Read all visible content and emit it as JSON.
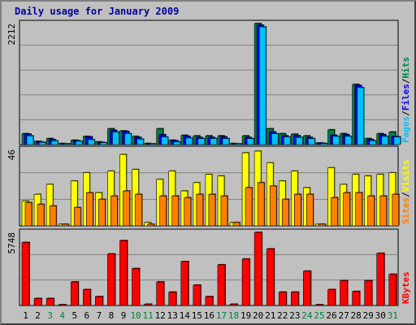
{
  "title": "Daily usage for January 2009",
  "colors": {
    "background": "#c0c0c0",
    "plot_background": "#c0c0c0",
    "hits": "#008040",
    "files": "#0000ff",
    "pages": "#00c0ff",
    "visits": "#ffff00",
    "sites": "#ff8000",
    "kbytes": "#ff0000",
    "weekend_day": "#008040",
    "weekday": "#000000",
    "title": "#0000a0"
  },
  "chart_data": [
    {
      "type": "bar",
      "name": "hits-files-pages",
      "ymax_label": "2212",
      "ylim": [
        0,
        2212
      ],
      "legend": [
        "Pages",
        "/",
        "Files",
        "/",
        "Hits"
      ],
      "categories": [
        "1",
        "2",
        "3",
        "4",
        "5",
        "6",
        "7",
        "8",
        "9",
        "10",
        "11",
        "12",
        "13",
        "14",
        "15",
        "16",
        "17",
        "18",
        "19",
        "20",
        "21",
        "22",
        "23",
        "24",
        "25",
        "26",
        "27",
        "28",
        "29",
        "30",
        "31"
      ],
      "series": [
        {
          "name": "Hits",
          "values": [
            200,
            60,
            110,
            20,
            80,
            150,
            50,
            290,
            250,
            150,
            20,
            290,
            80,
            170,
            160,
            160,
            160,
            20,
            160,
            2212,
            290,
            200,
            190,
            160,
            30,
            270,
            200,
            1100,
            110,
            200,
            230
          ]
        },
        {
          "name": "Files",
          "values": [
            190,
            50,
            90,
            15,
            70,
            140,
            40,
            260,
            240,
            130,
            15,
            180,
            70,
            150,
            130,
            130,
            140,
            15,
            130,
            2180,
            230,
            160,
            160,
            130,
            25,
            170,
            180,
            1080,
            90,
            180,
            150
          ]
        },
        {
          "name": "Pages",
          "values": [
            160,
            40,
            70,
            10,
            60,
            90,
            35,
            230,
            200,
            100,
            10,
            140,
            50,
            120,
            110,
            110,
            110,
            10,
            110,
            2150,
            200,
            140,
            130,
            110,
            20,
            150,
            150,
            1040,
            70,
            150,
            140
          ]
        }
      ]
    },
    {
      "type": "bar",
      "name": "visits-sites",
      "ymax_label": "46",
      "ylim": [
        0,
        46
      ],
      "legend": [
        "Sites",
        "/",
        "Visits"
      ],
      "categories": [
        "1",
        "2",
        "3",
        "4",
        "5",
        "6",
        "7",
        "8",
        "9",
        "10",
        "11",
        "12",
        "13",
        "14",
        "15",
        "16",
        "17",
        "18",
        "19",
        "20",
        "21",
        "22",
        "23",
        "24",
        "25",
        "26",
        "27",
        "28",
        "29",
        "30",
        "31"
      ],
      "series": [
        {
          "name": "Visits",
          "values": [
            15,
            19,
            25,
            1,
            27,
            32,
            20,
            33,
            43,
            34,
            2,
            28,
            33,
            21,
            26,
            31,
            30,
            2,
            44,
            45,
            38,
            27,
            33,
            23,
            1,
            35,
            25,
            31,
            30,
            31,
            32
          ]
        },
        {
          "name": "Sites",
          "values": [
            14,
            13,
            12,
            1,
            11,
            20,
            16,
            18,
            21,
            19,
            1,
            18,
            18,
            17,
            19,
            19,
            18,
            2,
            23,
            26,
            24,
            16,
            19,
            19,
            1,
            17,
            20,
            20,
            18,
            18,
            19
          ]
        }
      ]
    },
    {
      "type": "bar",
      "name": "kbytes",
      "ymax_label": "5748",
      "ylim": [
        0,
        5748
      ],
      "legend": [
        "KBytes"
      ],
      "categories": [
        "1",
        "2",
        "3",
        "4",
        "5",
        "6",
        "7",
        "8",
        "9",
        "10",
        "11",
        "12",
        "13",
        "14",
        "15",
        "16",
        "17",
        "18",
        "19",
        "20",
        "21",
        "22",
        "23",
        "24",
        "25",
        "26",
        "27",
        "28",
        "29",
        "30",
        "31"
      ],
      "series": [
        {
          "name": "KBytes",
          "values": [
            4950,
            550,
            550,
            50,
            1850,
            1250,
            700,
            4050,
            5100,
            2900,
            100,
            1850,
            1050,
            3450,
            1600,
            700,
            3200,
            100,
            3650,
            5748,
            4450,
            1050,
            1050,
            2700,
            50,
            1250,
            1950,
            1100,
            1950,
            4100,
            2450
          ]
        }
      ]
    }
  ],
  "day_labels": [
    "1",
    "2",
    "3",
    "4",
    "5",
    "6",
    "7",
    "8",
    "9",
    "10",
    "11",
    "12",
    "13",
    "14",
    "15",
    "16",
    "17",
    "18",
    "19",
    "20",
    "21",
    "22",
    "23",
    "24",
    "25",
    "26",
    "27",
    "28",
    "29",
    "30",
    "31"
  ],
  "weekend_days": [
    3,
    4,
    10,
    11,
    17,
    18,
    24,
    25,
    31
  ]
}
